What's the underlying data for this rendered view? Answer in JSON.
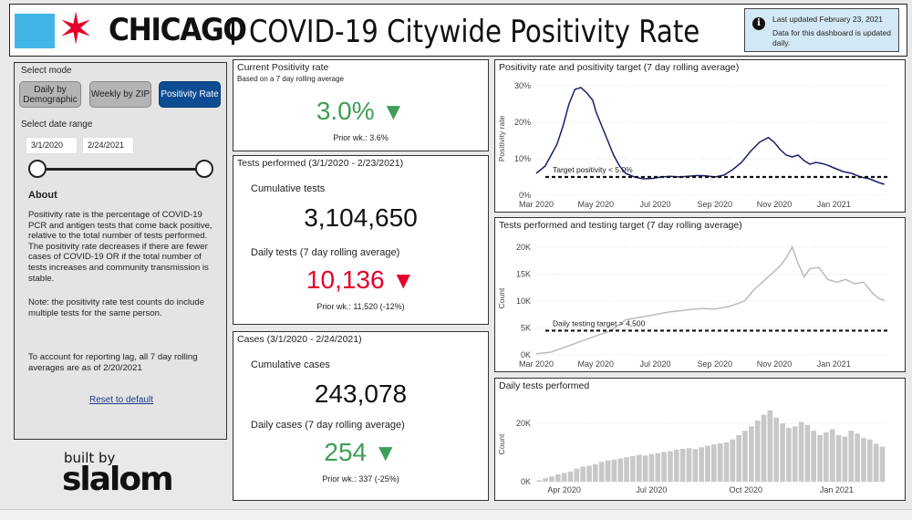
{
  "header": {
    "brand": "CHICAGO",
    "title": "COVID-19 Citywide Positivity Rate",
    "updated_line1": "Last updated February 23, 2021",
    "updated_line2": "Data for this dashboard is updated daily.",
    "colors": {
      "flag_blue": "#41b6e6",
      "flag_red": "#e4002b",
      "updated_bg": "#d3e8f5"
    }
  },
  "sidebar": {
    "select_mode_label": "Select mode",
    "modes": [
      {
        "label": "Daily by Demographic",
        "active": false
      },
      {
        "label": "Weekly by ZIP",
        "active": false
      },
      {
        "label": "Positivity Rate",
        "active": true
      }
    ],
    "select_date_label": "Select date range",
    "date_start": "3/1/2020",
    "date_end": "2/24/2021",
    "about_heading": "About",
    "about_p1": "Positivity rate is the percentage of COVID-19 PCR and antigen tests that come back positive, relative to the total number of tests performed.  The positivity rate decreases if there are fewer cases of COVID-19 OR if the total number of tests increases and community transmission is stable.",
    "about_p2": "Note: the positivity rate test counts do include multiple tests for the same person.",
    "about_p3": "To account for reporting lag, all 7 day rolling averages are as of 2/20/2021",
    "reset": "Reset to default",
    "accent": "#0e4c92"
  },
  "footer": {
    "built_by": "built by",
    "logo": "slalom"
  },
  "kpi_positivity": {
    "title": "Current Positivity rate",
    "subtitle": "Based on a 7 day rolling average",
    "value": "3.0%",
    "arrow": "▼",
    "prior": "Prior wk.: 3.6%"
  },
  "kpi_tests": {
    "title": "Tests performed (3/1/2020 - 2/23/2021)",
    "cumulative_label": "Cumulative tests",
    "cumulative_value": "3,104,650",
    "daily_label": "Daily tests (7 day rolling average)",
    "daily_value": "10,136",
    "arrow": "▼",
    "prior": "Prior wk.: 11,520 (-12%)"
  },
  "kpi_cases": {
    "title": "Cases (3/1/2020 - 2/24/2021)",
    "cumulative_label": "Cumulative cases",
    "cumulative_value": "243,078",
    "daily_label": "Daily cases (7 day rolling average)",
    "daily_value": "254",
    "arrow": "▼",
    "prior": "Prior wk.: 337 (-25%)"
  },
  "chart_data": [
    {
      "type": "line",
      "title": "Positivity rate and positivity target (7 day rolling average)",
      "ylabel": "Positivity rate",
      "ylim": [
        0,
        31
      ],
      "yticks": [
        "0%",
        "10%",
        "20%",
        "30%"
      ],
      "xticks": [
        "Mar 2020",
        "May 2020",
        "Jul 2020",
        "Sep 2020",
        "Nov 2020",
        "Jan 2021"
      ],
      "target_label": "Target positivity < 5.0%",
      "target": 5.0,
      "color": "#1a1f6b",
      "x_months": [
        0,
        0.3,
        0.5,
        0.7,
        0.9,
        1.1,
        1.3,
        1.5,
        1.7,
        1.9,
        2.0,
        2.2,
        2.4,
        2.6,
        2.8,
        3.0,
        3.3,
        3.6,
        3.9,
        4.2,
        4.5,
        4.8,
        5.1,
        5.4,
        5.7,
        6.0,
        6.3,
        6.6,
        6.9,
        7.2,
        7.5,
        7.8,
        8.0,
        8.2,
        8.4,
        8.6,
        8.8,
        9.0,
        9.2,
        9.4,
        9.6,
        9.8,
        10.0,
        10.3,
        10.6,
        10.9,
        11.2,
        11.5,
        11.7
      ],
      "values": [
        6,
        8,
        11,
        14,
        19,
        25,
        29,
        29.5,
        28,
        26,
        23,
        19,
        15,
        11,
        8,
        6,
        5,
        4.5,
        4.6,
        5,
        5.2,
        5,
        5.2,
        5.4,
        5.3,
        5,
        5.5,
        7,
        9,
        12,
        14.5,
        15.8,
        14.5,
        12.5,
        11,
        10.5,
        11,
        9.5,
        8.5,
        9,
        8.7,
        8.2,
        7.5,
        6.5,
        6,
        5,
        4.5,
        3.5,
        3.0
      ]
    },
    {
      "type": "line",
      "title": "Tests performed and testing target (7 day rolling average)",
      "ylabel": "Count",
      "ylim": [
        0,
        21000
      ],
      "yticks": [
        "0K",
        "5K",
        "10K",
        "15K",
        "20K"
      ],
      "xticks": [
        "Mar 2020",
        "May 2020",
        "Jul 2020",
        "Sep 2020",
        "Nov 2020",
        "Jan 2021"
      ],
      "target_label": "Daily testing target > 4,500",
      "target": 4500,
      "color": "#bbbbbb",
      "x_months": [
        0,
        0.5,
        1.0,
        1.5,
        2.0,
        2.5,
        3.0,
        3.5,
        4.0,
        4.5,
        5.0,
        5.5,
        6.0,
        6.5,
        7.0,
        7.3,
        7.6,
        7.9,
        8.2,
        8.4,
        8.6,
        8.8,
        9.0,
        9.2,
        9.5,
        9.8,
        10.1,
        10.4,
        10.7,
        11.0,
        11.3,
        11.5,
        11.7
      ],
      "values": [
        200,
        500,
        1500,
        2500,
        3500,
        4500,
        6500,
        7000,
        7500,
        8000,
        8300,
        8600,
        8500,
        9000,
        10000,
        12000,
        13500,
        15000,
        16500,
        18000,
        20000,
        17000,
        14500,
        16000,
        16200,
        14000,
        13500,
        14000,
        13200,
        13500,
        11500,
        10500,
        10136
      ]
    },
    {
      "type": "bar",
      "title": "Daily tests performed",
      "ylabel": "Count",
      "ylim": [
        0,
        26000
      ],
      "yticks": [
        "0K",
        "20K"
      ],
      "xticks": [
        "Apr 2020",
        "Jul 2020",
        "Oct 2020",
        "Jan 2021"
      ],
      "color": "#c8c8c8",
      "values": [
        500,
        1200,
        1800,
        2500,
        3000,
        3500,
        4500,
        5200,
        5500,
        6000,
        6800,
        7300,
        7600,
        8000,
        8400,
        8800,
        9200,
        9000,
        9500,
        9800,
        10200,
        10500,
        11000,
        11300,
        11500,
        11200,
        11800,
        12300,
        12800,
        13200,
        13500,
        14500,
        16000,
        17500,
        19000,
        21000,
        23000,
        24500,
        22000,
        20000,
        18500,
        19000,
        20500,
        19500,
        17500,
        16000,
        17000,
        18000,
        16000,
        15500,
        17500,
        16500,
        15000,
        14500,
        13000,
        12000
      ]
    }
  ]
}
